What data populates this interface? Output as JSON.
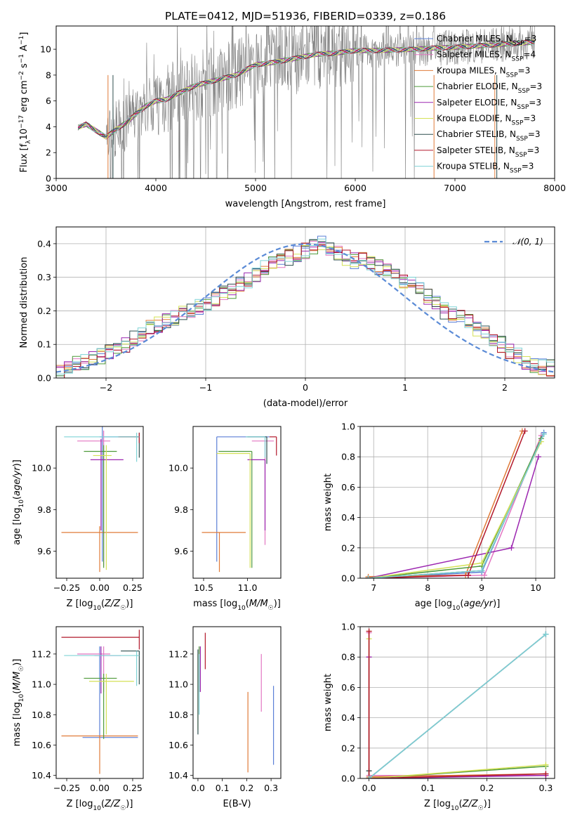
{
  "figure": {
    "title": "PLATE=0412, MJD=51936, FIBERID=0339, z=0.186"
  },
  "colors": {
    "Chabrier MILES": "#5b7fd6",
    "Salpeter MILES": "#e377c2",
    "Kroupa MILES": "#e07b39",
    "Chabrier ELODIE": "#4e9a3a",
    "Salpeter ELODIE": "#9c27b0",
    "Kroupa ELODIE": "#d4e157",
    "Chabrier STELIB": "#2f4f4f",
    "Salpeter STELIB": "#b2182b",
    "Kroupa STELIB": "#7fd3d6",
    "data": "#808080",
    "normal": "#5b8bd6"
  },
  "chart_data": [
    {
      "id": "spectrum",
      "type": "line",
      "xlabel": "wavelength [Angstrom, rest frame]",
      "ylabel": "Flux [f_λ 10^-17 erg cm^-2 s^-1 A^-1]",
      "xlim": [
        3000,
        8000
      ],
      "ylim": [
        0,
        11.8
      ],
      "xticks": [
        "3000",
        "4000",
        "5000",
        "6000",
        "7000",
        "8000"
      ],
      "yticks": [
        "0",
        "2",
        "4",
        "6",
        "8",
        "10"
      ],
      "grid": false,
      "legend_position": "top-right",
      "legend": [
        "Chabrier MILES, N_SSP=3",
        "Salpeter MILES, N_SSP=4",
        "Kroupa MILES, N_SSP=3",
        "Chabrier ELODIE, N_SSP=3",
        "Salpeter ELODIE, N_SSP=3",
        "Kroupa ELODIE, N_SSP=3",
        "Chabrier STELIB, N_SSP=3",
        "Salpeter STELIB, N_SSP=3",
        "Kroupa STELIB, N_SSP=3"
      ],
      "model_continuum": {
        "x": [
          3200,
          3300,
          3400,
          3500,
          3600,
          3700,
          3800,
          3900,
          4000,
          4100,
          4200,
          4400,
          4600,
          4800,
          5000,
          5200,
          5400,
          5600,
          5800,
          6000,
          6200,
          6400,
          6600,
          6800,
          7000,
          7200,
          7400,
          7600,
          7800
        ],
        "y": [
          3.9,
          4.2,
          3.7,
          3.2,
          3.8,
          4.3,
          5.0,
          5.6,
          6.0,
          6.1,
          6.5,
          7.2,
          7.6,
          8.0,
          8.8,
          9.0,
          9.3,
          9.6,
          9.7,
          9.9,
          9.9,
          9.95,
          10.0,
          10.1,
          10.15,
          10.25,
          10.35,
          10.45,
          10.55
        ]
      }
    },
    {
      "id": "residuals",
      "type": "line",
      "xlabel": "(data-model)/error",
      "ylabel": "Normed distribution",
      "xlim": [
        -2.5,
        2.5
      ],
      "ylim": [
        0,
        0.45
      ],
      "xticks": [
        "−2",
        "−1",
        "0",
        "1",
        "2"
      ],
      "yticks": [
        "0.0",
        "0.1",
        "0.2",
        "0.3",
        "0.4"
      ],
      "grid": true,
      "legend_position": "top-right",
      "legend": [
        "𝒩(0, 1)"
      ],
      "bin_width": 0.1,
      "histogram_mean": [
        0.02,
        0.035,
        0.045,
        0.05,
        0.06,
        0.065,
        0.08,
        0.09,
        0.1,
        0.12,
        0.13,
        0.15,
        0.16,
        0.17,
        0.18,
        0.19,
        0.2,
        0.21,
        0.22,
        0.24,
        0.25,
        0.26,
        0.28,
        0.29,
        0.31,
        0.33,
        0.34,
        0.35,
        0.36,
        0.37,
        0.38,
        0.39,
        0.4,
        0.38,
        0.37,
        0.36,
        0.35,
        0.36,
        0.34,
        0.33,
        0.32,
        0.3,
        0.29,
        0.28,
        0.26,
        0.24,
        0.22,
        0.2,
        0.19,
        0.18,
        0.17,
        0.15,
        0.13,
        0.11,
        0.1,
        0.08,
        0.065,
        0.05,
        0.04,
        0.035,
        0.03
      ]
    },
    {
      "id": "age-vs-Z",
      "type": "scatter",
      "xlabel": "Z [log10(Z/Z☉)]",
      "ylabel": "age [log10(age/yr)]",
      "xlim": [
        -0.33,
        0.33
      ],
      "ylim": [
        9.47,
        10.2
      ],
      "xticks": [
        "−0.25",
        "0.00",
        "0.25"
      ],
      "yticks": [
        "9.6",
        "9.8",
        "10.0"
      ],
      "points": [
        {
          "model": "Chabrier MILES",
          "x": 0.02,
          "xerr": [
            0.02,
            0.28
          ],
          "y": 10.15,
          "yerr": [
            0.6,
            0.05
          ]
        },
        {
          "model": "Salpeter MILES",
          "x": 0.03,
          "xerr": [
            0.2,
            0.05
          ],
          "y": 10.13,
          "yerr": [
            0.6,
            0.05
          ]
        },
        {
          "model": "Kroupa MILES",
          "x": 0.0,
          "xerr": [
            0.29,
            0.29
          ],
          "y": 9.69,
          "yerr": [
            0.19,
            0.03
          ]
        },
        {
          "model": "Chabrier ELODIE",
          "x": 0.03,
          "xerr": [
            0.15,
            0.1
          ],
          "y": 10.08,
          "yerr": [
            0.56,
            0.03
          ]
        },
        {
          "model": "Salpeter ELODIE",
          "x": 0.01,
          "xerr": [
            0.08,
            0.17
          ],
          "y": 10.04,
          "yerr": [
            0.34,
            0.1
          ]
        },
        {
          "model": "Kroupa ELODIE",
          "x": 0.05,
          "xerr": [
            0.1,
            0.04
          ],
          "y": 10.06,
          "yerr": [
            0.55,
            0.05
          ]
        },
        {
          "model": "Chabrier STELIB",
          "x": 0.3,
          "xerr": [
            0.15,
            0.0
          ],
          "y": 10.15,
          "yerr": [
            0.1,
            0.02
          ]
        },
        {
          "model": "Salpeter STELIB",
          "x": 0.3,
          "xerr": [
            0.16,
            0.0
          ],
          "y": 10.15,
          "yerr": [
            0.03,
            0.02
          ]
        },
        {
          "model": "Kroupa STELIB",
          "x": 0.28,
          "xerr": [
            0.55,
            0.02
          ],
          "y": 10.15,
          "yerr": [
            0.12,
            0.02
          ]
        }
      ]
    },
    {
      "id": "age-vs-mass",
      "type": "scatter",
      "xlabel": "mass [log10(M/M☉)]",
      "ylabel": "",
      "xlim": [
        10.38,
        11.38
      ],
      "ylim": [
        9.47,
        10.2
      ],
      "xticks": [
        "10.5",
        "11.0"
      ],
      "yticks": [
        "9.6",
        "9.8",
        "10.0"
      ],
      "points": [
        {
          "model": "Chabrier MILES",
          "x": 10.65,
          "xerr": [
            0.0,
            0.6
          ],
          "y": 10.15,
          "yerr": [
            0.6,
            0.0
          ]
        },
        {
          "model": "Salpeter MILES",
          "x": 11.2,
          "xerr": [
            0.15,
            0.1
          ],
          "y": 10.13,
          "yerr": [
            0.5,
            0.0
          ]
        },
        {
          "model": "Kroupa MILES",
          "x": 10.68,
          "xerr": [
            0.2,
            0.3
          ],
          "y": 9.69,
          "yerr": [
            0.19,
            0.0
          ]
        },
        {
          "model": "Chabrier ELODIE",
          "x": 11.05,
          "xerr": [
            0.38,
            0.0
          ],
          "y": 10.08,
          "yerr": [
            0.56,
            0.0
          ]
        },
        {
          "model": "Salpeter ELODIE",
          "x": 11.2,
          "xerr": [
            0.2,
            0.0
          ],
          "y": 10.04,
          "yerr": [
            0.34,
            0.0
          ]
        },
        {
          "model": "Kroupa ELODIE",
          "x": 11.03,
          "xerr": [
            0.38,
            0.0
          ],
          "y": 10.07,
          "yerr": [
            0.55,
            0.0
          ]
        },
        {
          "model": "Chabrier STELIB",
          "x": 11.22,
          "xerr": [
            0.22,
            0.0
          ],
          "y": 10.15,
          "yerr": [
            0.13,
            0.0
          ]
        },
        {
          "model": "Salpeter STELIB",
          "x": 11.33,
          "xerr": [
            0.08,
            0.0
          ],
          "y": 10.15,
          "yerr": [
            0.09,
            0.0
          ]
        },
        {
          "model": "Kroupa STELIB",
          "x": 11.2,
          "xerr": [
            0.22,
            0.0
          ],
          "y": 10.15,
          "yerr": [
            0.1,
            0.0
          ]
        }
      ]
    },
    {
      "id": "mass-weight-vs-age",
      "type": "line",
      "xlabel": "age [log10(age/yr)]",
      "ylabel": "mass weight",
      "xlim": [
        6.75,
        10.35
      ],
      "ylim": [
        0,
        1
      ],
      "xticks": [
        "7",
        "8",
        "9",
        "10"
      ],
      "yticks": [
        "0.0",
        "0.2",
        "0.4",
        "0.6",
        "0.8",
        "1.0"
      ],
      "grid": true,
      "series": [
        {
          "model": "Chabrier MILES",
          "x": [
            6.9,
            9.0,
            10.15
          ],
          "y": [
            0.0,
            0.04,
            0.96
          ]
        },
        {
          "model": "Salpeter MILES",
          "x": [
            6.9,
            9.05,
            10.1
          ],
          "y": [
            0.0,
            0.02,
            0.94
          ]
        },
        {
          "model": "Kroupa MILES",
          "x": [
            6.9,
            8.7,
            9.75
          ],
          "y": [
            0.01,
            0.02,
            0.97
          ]
        },
        {
          "model": "Chabrier ELODIE",
          "x": [
            6.9,
            9.0,
            10.1
          ],
          "y": [
            0.0,
            0.08,
            0.92
          ]
        },
        {
          "model": "Salpeter ELODIE",
          "x": [
            6.9,
            9.55,
            10.05
          ],
          "y": [
            0.0,
            0.2,
            0.8
          ]
        },
        {
          "model": "Kroupa ELODIE",
          "x": [
            6.9,
            9.0,
            10.1
          ],
          "y": [
            0.0,
            0.1,
            0.9
          ]
        },
        {
          "model": "Chabrier STELIB",
          "x": [
            6.9,
            9.0,
            10.15
          ],
          "y": [
            0.0,
            0.05,
            0.95
          ]
        },
        {
          "model": "Salpeter STELIB",
          "x": [
            6.9,
            8.75,
            9.8
          ],
          "y": [
            0.0,
            0.02,
            0.97
          ]
        },
        {
          "model": "Kroupa STELIB",
          "x": [
            6.9,
            9.0,
            10.15
          ],
          "y": [
            0.0,
            0.05,
            0.95
          ]
        }
      ]
    },
    {
      "id": "mass-vs-Z",
      "type": "scatter",
      "xlabel": "Z [log10(Z/Z☉)]",
      "ylabel": "mass [log10(M/M☉)]",
      "xlim": [
        -0.33,
        0.33
      ],
      "ylim": [
        10.38,
        11.38
      ],
      "xticks": [
        "−0.25",
        "0.00",
        "0.25"
      ],
      "yticks": [
        "10.4",
        "10.6",
        "10.8",
        "11.0",
        "11.2"
      ],
      "points": [
        {
          "model": "Chabrier MILES",
          "x": 0.0,
          "xerr": [
            0.13,
            0.29
          ],
          "y": 10.65,
          "yerr": [
            0.0,
            0.6
          ]
        },
        {
          "model": "Salpeter MILES",
          "x": 0.03,
          "xerr": [
            0.2,
            0.05
          ],
          "y": 11.2,
          "yerr": [
            0.25,
            0.05
          ]
        },
        {
          "model": "Kroupa MILES",
          "x": 0.0,
          "xerr": [
            0.29,
            0.29
          ],
          "y": 10.66,
          "yerr": [
            0.25,
            0.0
          ]
        },
        {
          "model": "Chabrier ELODIE",
          "x": 0.03,
          "xerr": [
            0.15,
            0.1
          ],
          "y": 11.04,
          "yerr": [
            0.4,
            0.03
          ]
        },
        {
          "model": "Salpeter ELODIE",
          "x": 0.01,
          "xerr": [
            0.05,
            0.15
          ],
          "y": 11.19,
          "yerr": [
            0.25,
            0.06
          ]
        },
        {
          "model": "Kroupa ELODIE",
          "x": 0.05,
          "xerr": [
            0.13,
            0.21
          ],
          "y": 11.02,
          "yerr": [
            0.35,
            0.05
          ]
        },
        {
          "model": "Chabrier STELIB",
          "x": 0.3,
          "xerr": [
            0.14,
            0.0
          ],
          "y": 11.22,
          "yerr": [
            0.22,
            0.0
          ]
        },
        {
          "model": "Salpeter STELIB",
          "x": 0.3,
          "xerr": [
            0.59,
            0.0
          ],
          "y": 11.31,
          "yerr": [
            0.08,
            0.05
          ]
        },
        {
          "model": "Kroupa STELIB",
          "x": 0.28,
          "xerr": [
            0.55,
            0.02
          ],
          "y": 11.19,
          "yerr": [
            0.2,
            0.03
          ]
        }
      ]
    },
    {
      "id": "mass-vs-EBV",
      "type": "scatter",
      "xlabel": "E(B-V)",
      "ylabel": "",
      "xlim": [
        -0.02,
        0.34
      ],
      "ylim": [
        10.38,
        11.38
      ],
      "xticks": [
        "0.0",
        "0.1",
        "0.2",
        "0.3"
      ],
      "yticks": [
        "10.4",
        "10.6",
        "10.8",
        "11.0",
        "11.2"
      ],
      "points": [
        {
          "model": "Chabrier MILES",
          "x": 0.31,
          "y": 10.75,
          "yerr": [
            0.28,
            0.24
          ]
        },
        {
          "model": "Salpeter MILES",
          "x": 0.26,
          "y": 11.0,
          "yerr": [
            0.18,
            0.2
          ]
        },
        {
          "model": "Kroupa MILES",
          "x": 0.205,
          "y": 10.68,
          "yerr": [
            0.26,
            0.27
          ]
        },
        {
          "model": "Chabrier ELODIE",
          "x": 0.005,
          "y": 11.05,
          "yerr": [
            0.1,
            0.2
          ]
        },
        {
          "model": "Salpeter ELODIE",
          "x": 0.01,
          "y": 11.1,
          "yerr": [
            0.15,
            0.15
          ]
        },
        {
          "model": "Kroupa ELODIE",
          "x": 0.0,
          "y": 10.95,
          "yerr": [
            0.25,
            0.25
          ]
        },
        {
          "model": "Chabrier STELIB",
          "x": 0.0,
          "y": 10.95,
          "yerr": [
            0.28,
            0.28
          ]
        },
        {
          "model": "Salpeter STELIB",
          "x": 0.03,
          "y": 11.2,
          "yerr": [
            0.1,
            0.14
          ]
        },
        {
          "model": "Kroupa STELIB",
          "x": 0.005,
          "y": 11.0,
          "yerr": [
            0.2,
            0.2
          ]
        }
      ]
    },
    {
      "id": "mass-weight-vs-Z",
      "type": "line",
      "xlabel": "Z [log10(Z/Z☉)]",
      "ylabel": "mass weight",
      "xlim": [
        -0.015,
        0.315
      ],
      "ylim": [
        0,
        1
      ],
      "xticks": [
        "0.0",
        "0.1",
        "0.2",
        "0.3"
      ],
      "yticks": [
        "0.0",
        "0.2",
        "0.4",
        "0.6",
        "0.8",
        "1.0"
      ],
      "grid": true,
      "series": [
        {
          "model": "Chabrier MILES",
          "x": [
            0.0,
            0.3
          ],
          "y": [
            0.0,
            0.95
          ]
        },
        {
          "model": "Salpeter MILES",
          "x": [
            0.0,
            0.0,
            0.3
          ],
          "y": [
            0.96,
            0.02,
            0.02
          ]
        },
        {
          "model": "Kroupa MILES",
          "x": [
            0.0,
            0.0,
            0.3
          ],
          "y": [
            0.97,
            0.01,
            0.03
          ]
        },
        {
          "model": "Chabrier ELODIE",
          "x": [
            0.0,
            0.3
          ],
          "y": [
            0.0,
            0.08
          ]
        },
        {
          "model": "Salpeter ELODIE",
          "x": [
            0.0,
            0.0,
            0.3
          ],
          "y": [
            0.8,
            0.0,
            0.02
          ]
        },
        {
          "model": "Kroupa ELODIE",
          "x": [
            0.0,
            0.0,
            0.3
          ],
          "y": [
            0.92,
            0.0,
            0.09
          ]
        },
        {
          "model": "Chabrier STELIB",
          "x": [
            0.0,
            0.0,
            0.3
          ],
          "y": [
            0.05,
            0.0,
            0.95
          ]
        },
        {
          "model": "Salpeter STELIB",
          "x": [
            0.0,
            0.0,
            0.3
          ],
          "y": [
            0.97,
            0.0,
            0.03
          ]
        },
        {
          "model": "Kroupa STELIB",
          "x": [
            0.0,
            0.3
          ],
          "y": [
            0.0,
            0.95
          ]
        }
      ]
    }
  ]
}
